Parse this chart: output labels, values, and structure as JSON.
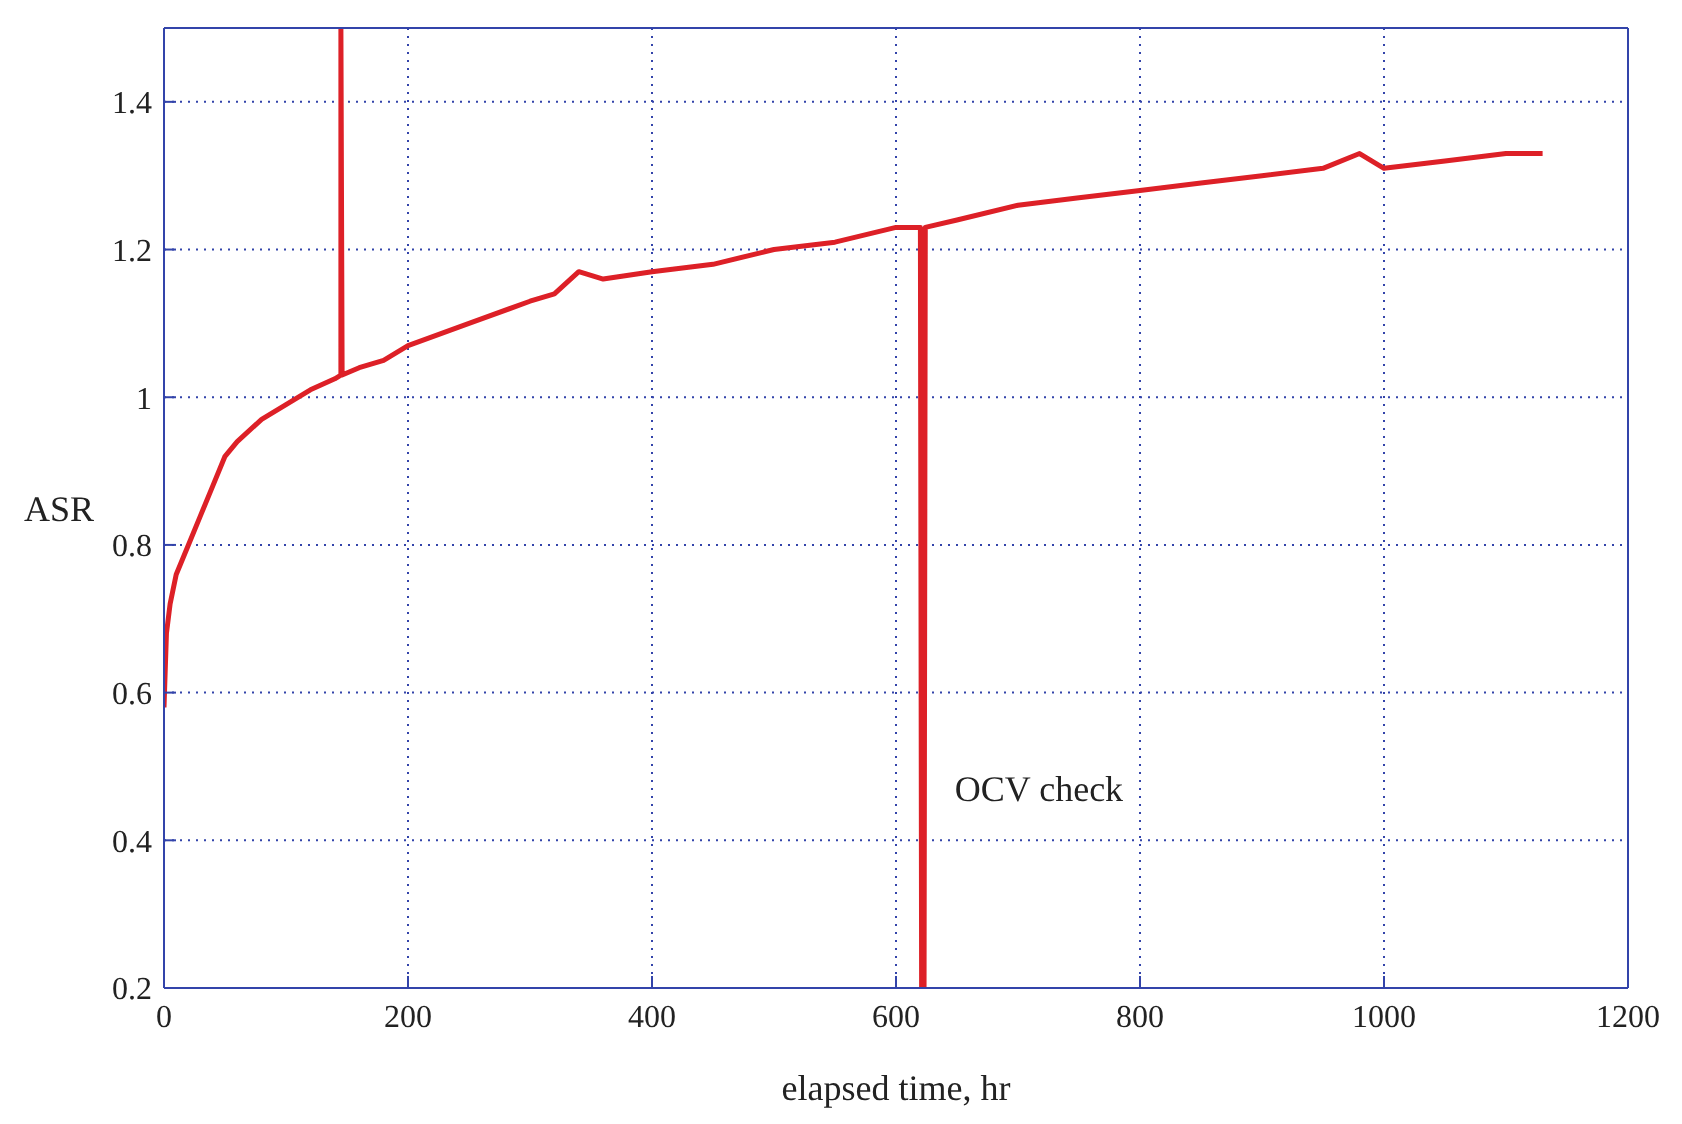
{
  "chart_data": {
    "type": "line",
    "xlabel": "elapsed time, hr",
    "ylabel": "ASR",
    "xlim": [
      0,
      1200
    ],
    "xticks": [
      0,
      200,
      400,
      600,
      800,
      1000,
      1200
    ],
    "ylim": [
      0.2,
      1.5
    ],
    "yticks": [
      0.2,
      0.4,
      0.6,
      0.8,
      1,
      1.2,
      1.4
    ],
    "grid": true,
    "annotations": [
      {
        "text": "OCV check",
        "x": 622,
        "y": 0.47
      }
    ],
    "series": [
      {
        "color": "#dd2027",
        "x": [
          0,
          2,
          5,
          10,
          20,
          30,
          40,
          50,
          60,
          80,
          100,
          120,
          140,
          145,
          145,
          146,
          160,
          180,
          200,
          250,
          300,
          320,
          340,
          360,
          400,
          450,
          500,
          550,
          600,
          620,
          621,
          623,
          624,
          650,
          700,
          750,
          800,
          850,
          900,
          950,
          980,
          1000,
          1050,
          1100,
          1130
        ],
        "values": [
          0.58,
          0.68,
          0.72,
          0.76,
          0.8,
          0.84,
          0.88,
          0.92,
          0.94,
          0.97,
          0.99,
          1.01,
          1.025,
          1.03,
          1.5,
          1.03,
          1.04,
          1.05,
          1.07,
          1.1,
          1.13,
          1.14,
          1.17,
          1.16,
          1.17,
          1.18,
          1.2,
          1.21,
          1.23,
          1.23,
          0.2,
          0.2,
          1.23,
          1.24,
          1.26,
          1.27,
          1.28,
          1.29,
          1.3,
          1.31,
          1.33,
          1.31,
          1.32,
          1.33,
          1.33
        ]
      }
    ]
  }
}
